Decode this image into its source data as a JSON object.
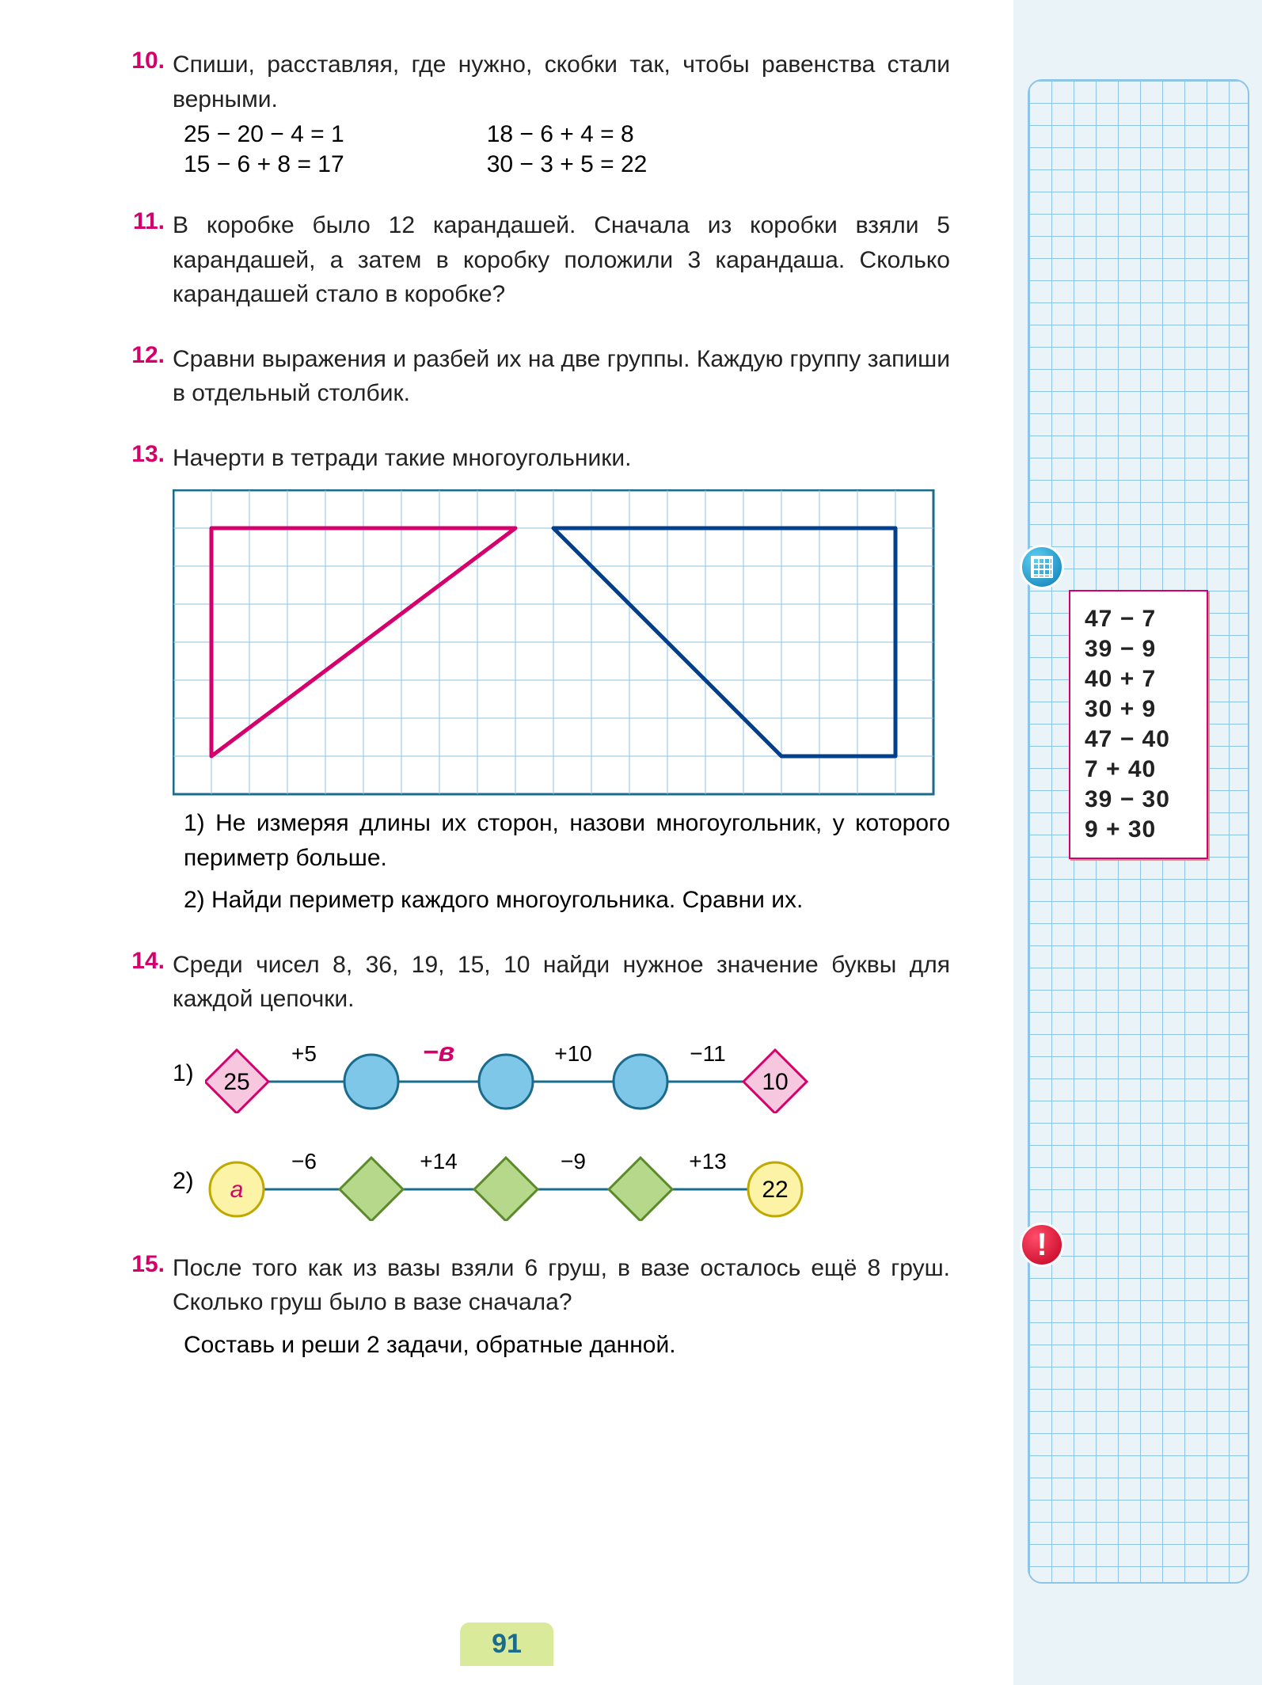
{
  "page_number": "91",
  "colors": {
    "accent": "#d6006c",
    "text": "#222222",
    "grid_line": "#8ec5e6",
    "sidebar_bg": "#eaf3f7",
    "page_bg": "#ffffff",
    "pagenum_bg": "#d9ea9b",
    "pagenum_text": "#1a6b8c"
  },
  "tasks": {
    "t10": {
      "num": "10.",
      "text": "Спиши, расставляя, где нужно, скобки так, чтобы равенства стали верными.",
      "col1": [
        "25 − 20 − 4 = 1",
        "15 − 6 + 8 = 17"
      ],
      "col2": [
        "18 − 6 + 4 = 8",
        "30 − 3 + 5 = 22"
      ]
    },
    "t11": {
      "num": "11.",
      "text": "В коробке было 12 карандашей. Сначала из коробки взяли 5 карандашей, а затем в коробку положили 3 карандаша. Сколько карандашей стало в коробке?"
    },
    "t12": {
      "num": "12.",
      "text": "Сравни выражения и разбей их на две группы. Каждую группу запиши в отдельный столбик."
    },
    "t13": {
      "num": "13.",
      "text": "Начерти в тетради такие многоугольники.",
      "grid": {
        "cols": 20,
        "rows": 8,
        "cell": 48,
        "border_color": "#1a6b8c",
        "grid_color": "#8ec5e6",
        "shape1": {
          "type": "triangle",
          "color": "#d6006c",
          "stroke": 5,
          "points": [
            [
              1,
              1
            ],
            [
              9,
              1
            ],
            [
              1,
              7
            ]
          ]
        },
        "shape2": {
          "type": "quadrilateral",
          "color": "#003f8c",
          "stroke": 5,
          "points": [
            [
              10,
              1
            ],
            [
              19,
              1
            ],
            [
              19,
              7
            ],
            [
              16,
              7
            ]
          ]
        }
      },
      "sub": [
        "1) Не измеряя длины их сторон, назови многоугольник, у которого периметр больше.",
        "2) Найди периметр каждого многоугольника. Сравни их."
      ]
    },
    "t14": {
      "num": "14.",
      "text": "Среди чисел 8, 36, 19, 15, 10 найди нужное значение буквы для каждой цепочки.",
      "chain1": {
        "idx": "1)",
        "nodes": [
          {
            "shape": "diamond",
            "fill": "#f7c7e0",
            "stroke": "#d6006c",
            "label": "25"
          },
          {
            "shape": "circle",
            "fill": "#7fc7e8",
            "stroke": "#1a6b8c",
            "label": ""
          },
          {
            "shape": "circle",
            "fill": "#7fc7e8",
            "stroke": "#1a6b8c",
            "label": ""
          },
          {
            "shape": "circle",
            "fill": "#7fc7e8",
            "stroke": "#1a6b8c",
            "label": ""
          },
          {
            "shape": "diamond",
            "fill": "#f7c7e0",
            "stroke": "#d6006c",
            "label": "10"
          }
        ],
        "ops": [
          {
            "text": "+5",
            "color": "#000"
          },
          {
            "text": "−в",
            "color": "#d6006c",
            "italic": true
          },
          {
            "text": "+10",
            "color": "#000"
          },
          {
            "text": "−11",
            "color": "#000"
          }
        ]
      },
      "chain2": {
        "idx": "2)",
        "nodes": [
          {
            "shape": "circle",
            "fill": "#fcf3a6",
            "stroke": "#bfa800",
            "label": "а",
            "label_color": "#d6006c",
            "italic": true
          },
          {
            "shape": "diamond",
            "fill": "#b6d88a",
            "stroke": "#5a8a2a",
            "label": ""
          },
          {
            "shape": "diamond",
            "fill": "#b6d88a",
            "stroke": "#5a8a2a",
            "label": ""
          },
          {
            "shape": "diamond",
            "fill": "#b6d88a",
            "stroke": "#5a8a2a",
            "label": ""
          },
          {
            "shape": "circle",
            "fill": "#fcf3a6",
            "stroke": "#bfa800",
            "label": "22"
          }
        ],
        "ops": [
          {
            "text": "−6",
            "color": "#000"
          },
          {
            "text": "+14",
            "color": "#000"
          },
          {
            "text": "−9",
            "color": "#000"
          },
          {
            "text": "+13",
            "color": "#000"
          }
        ]
      }
    },
    "t15": {
      "num": "15.",
      "text": "После того как из вазы взяли 6 груш, в вазе осталось ещё 8 груш. Сколько груш было в вазе сначала?",
      "sub": "Составь и реши 2 задачи, обратные данной."
    }
  },
  "sidebar": {
    "expressions": [
      "47 − 7",
      "39 − 9",
      "40 + 7",
      "30 + 9",
      "47 − 40",
      "7 + 40",
      "39 − 30",
      "9 + 30"
    ]
  }
}
